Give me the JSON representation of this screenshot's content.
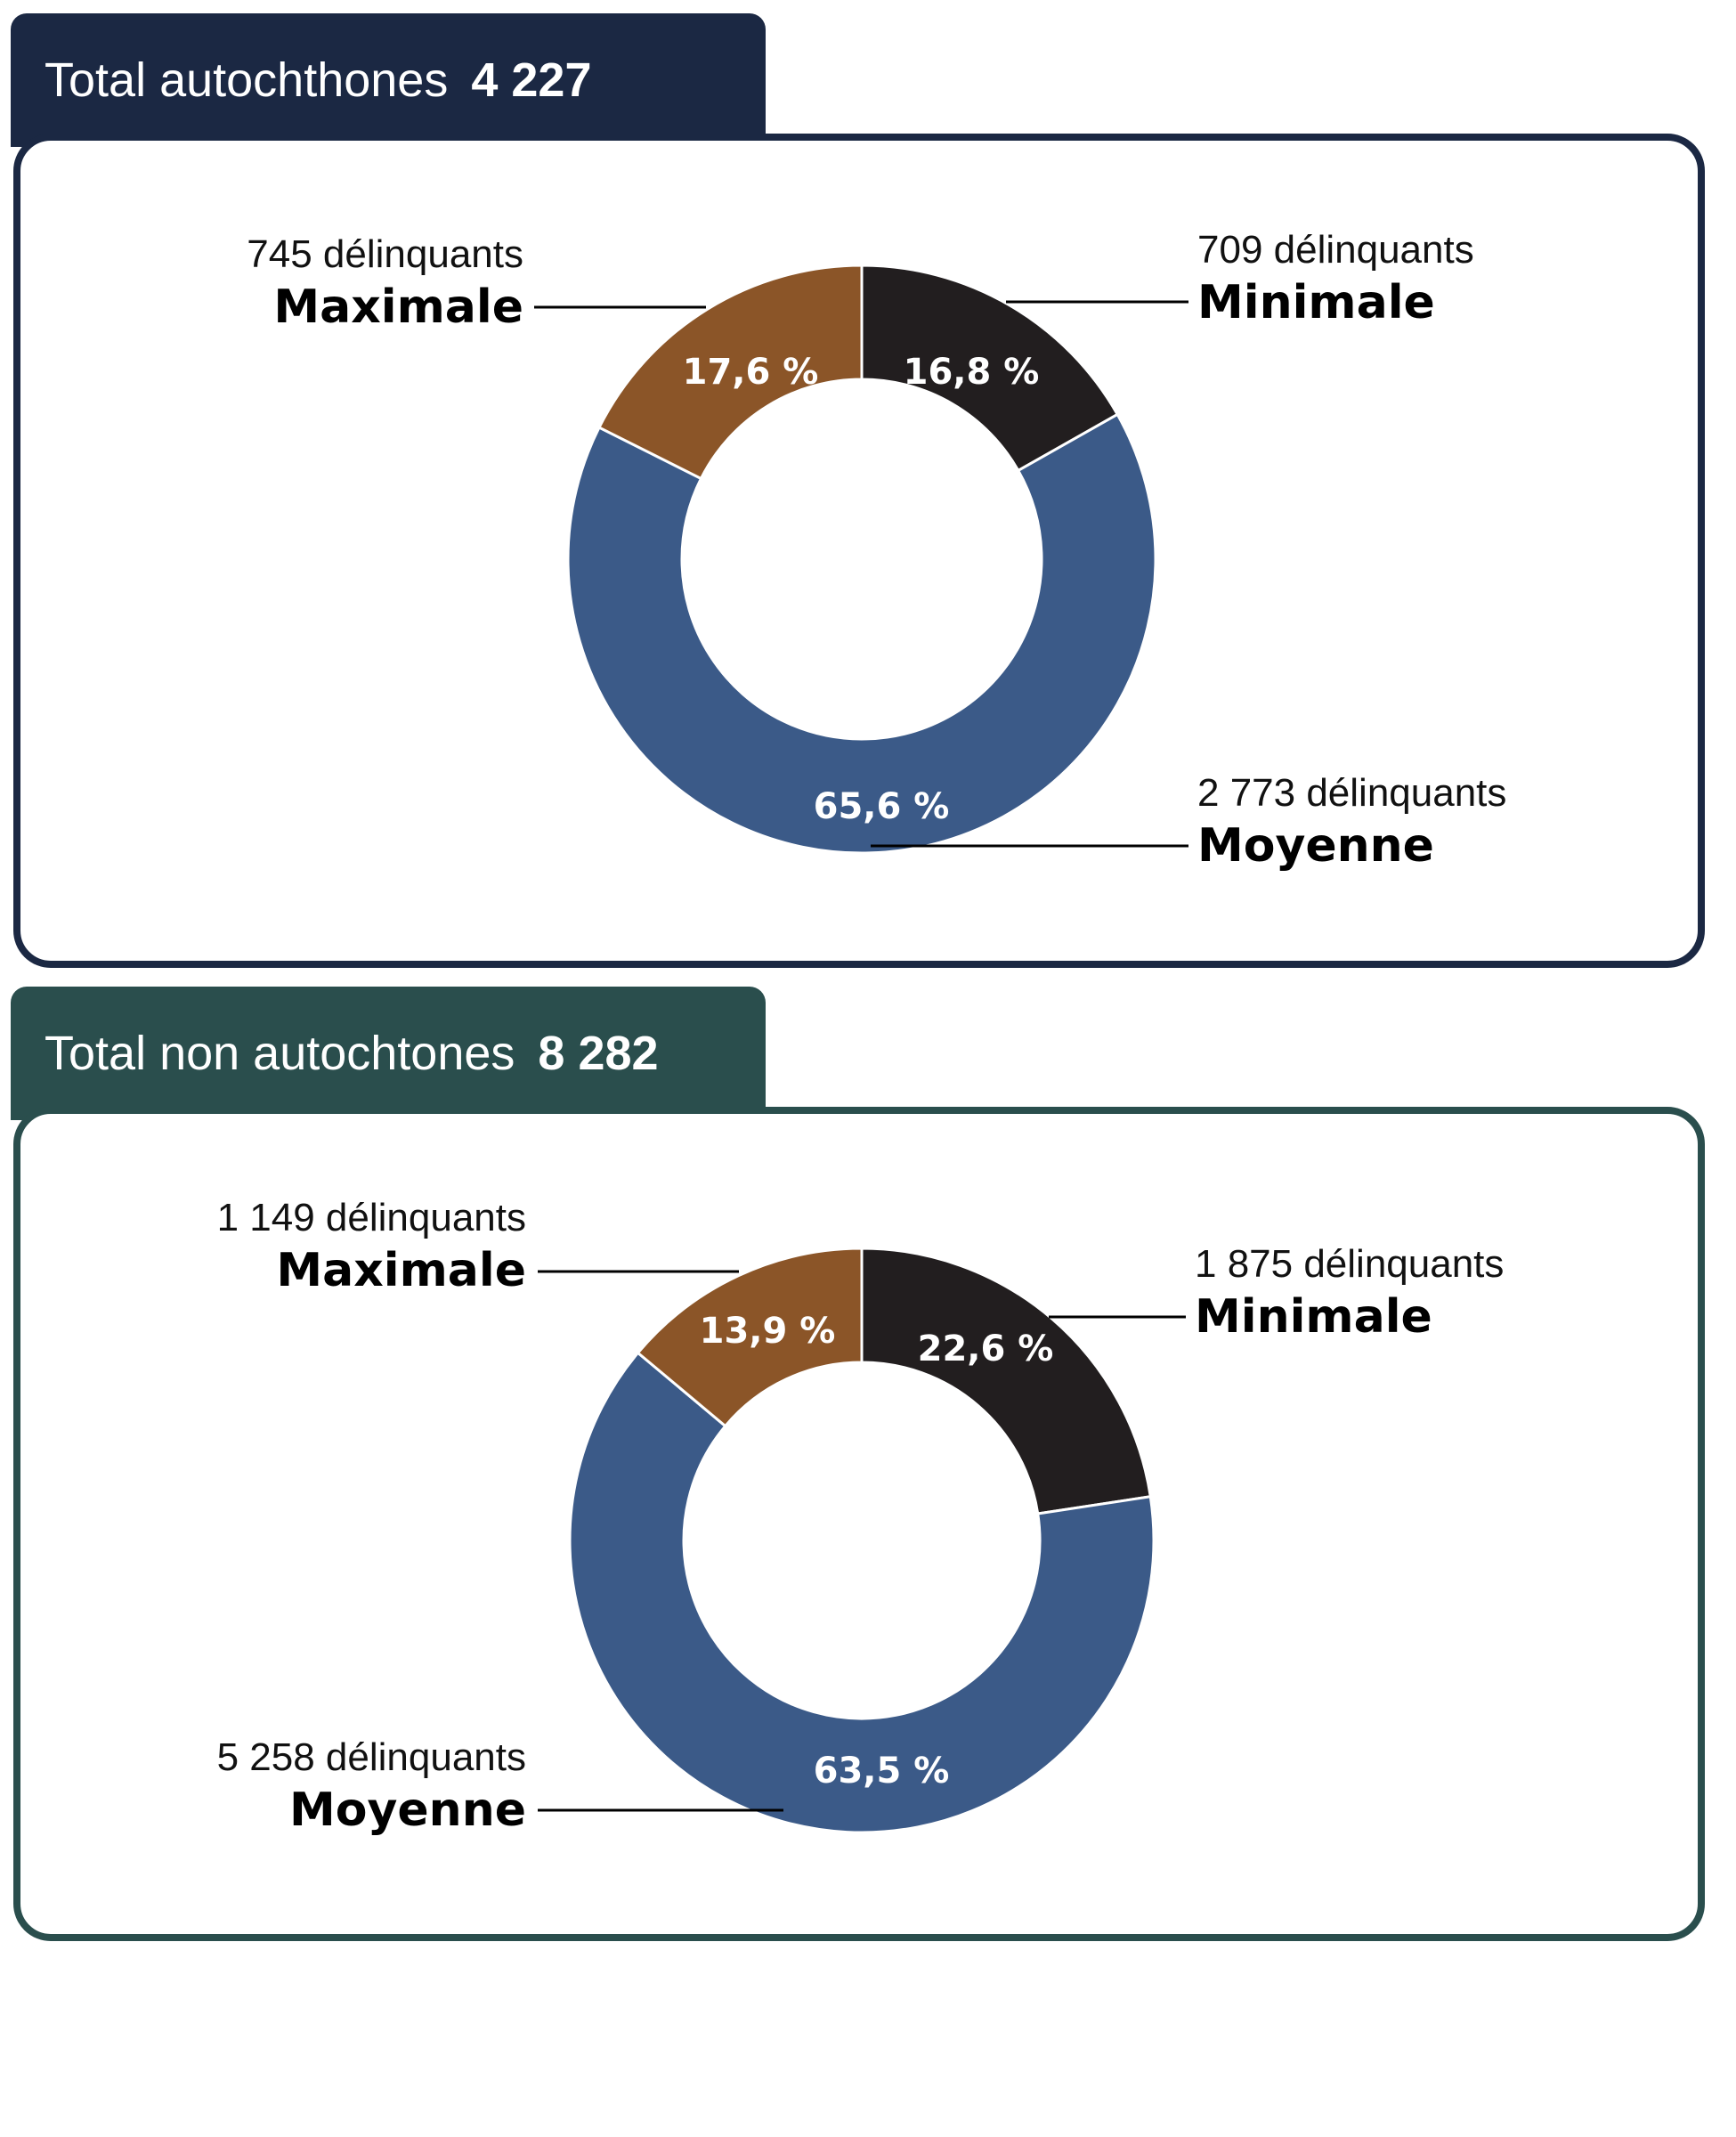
{
  "colors": {
    "maximale": "#8b5528",
    "minimale": "#221e1f",
    "moyenne": "#3b5a88",
    "panel1": "#1b2843",
    "panel2": "#2a4e4d"
  },
  "panels": [
    {
      "label": "Total autochthones",
      "total": "4 227"
    },
    {
      "label": "Total non autochtones",
      "total": "8 282"
    }
  ],
  "chart_data": [
    {
      "type": "pie",
      "title": "Total autochthones 4 227",
      "slices": [
        {
          "category": "Minimale",
          "count_label": "709 délinquants",
          "percent": 16.8,
          "percent_label": "16,8 %",
          "color": "#221e1f"
        },
        {
          "category": "Moyenne",
          "count_label": "2 773 délinquants",
          "percent": 65.6,
          "percent_label": "65,6 %",
          "color": "#3b5a88"
        },
        {
          "category": "Maximale",
          "count_label": "745 délinquants",
          "percent": 17.6,
          "percent_label": "17,6 %",
          "color": "#8b5528"
        }
      ]
    },
    {
      "type": "pie",
      "title": "Total non autochtones 8 282",
      "slices": [
        {
          "category": "Minimale",
          "count_label": "1 875 délinquants",
          "percent": 22.6,
          "percent_label": "22,6 %",
          "color": "#221e1f"
        },
        {
          "category": "Moyenne",
          "count_label": "5 258 délinquants",
          "percent": 63.5,
          "percent_label": "63,5 %",
          "color": "#3b5a88"
        },
        {
          "category": "Maximale",
          "count_label": "1 149 délinquants",
          "percent": 13.9,
          "percent_label": "13,9 %",
          "color": "#8b5528"
        }
      ]
    }
  ]
}
